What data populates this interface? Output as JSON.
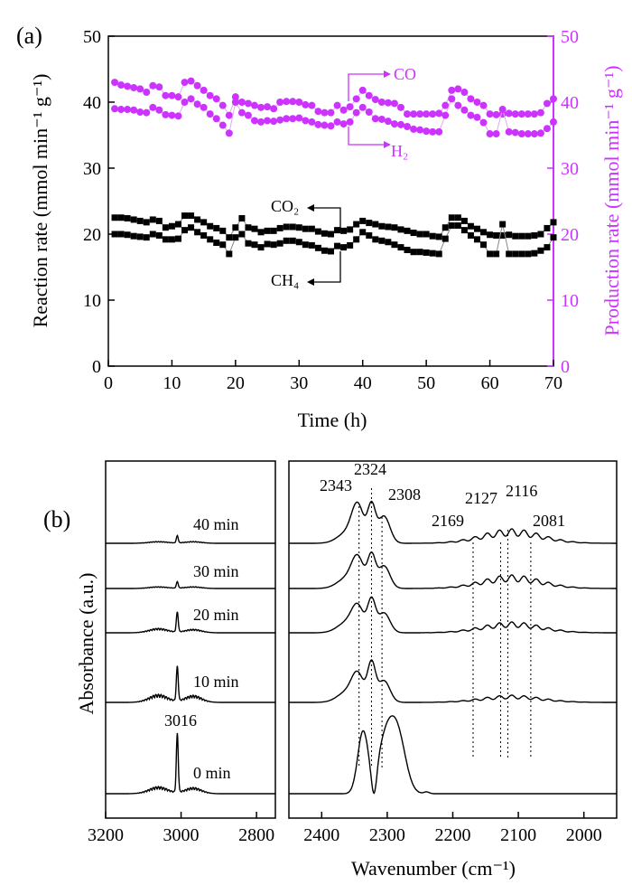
{
  "chart_data": [
    {
      "type": "scatter",
      "panel_label": "(a)",
      "xlabel": "Time (h)",
      "ylabel": "Reaction rate (mmol min⁻¹ g⁻¹)",
      "y2label": "Production rate (mmol min⁻¹ g⁻¹)",
      "xlim": [
        0,
        70
      ],
      "ylim": [
        0,
        50
      ],
      "y2lim": [
        0,
        50
      ],
      "xticks": [
        "0",
        "10",
        "20",
        "30",
        "40",
        "50",
        "60",
        "70"
      ],
      "yticks": [
        "0",
        "10",
        "20",
        "30",
        "40",
        "50"
      ],
      "y2ticks": [
        "0",
        "10",
        "20",
        "30",
        "40",
        "50"
      ],
      "colors": {
        "left_axis": "#000000",
        "right_axis": "#cc33ff",
        "ch4_co2": "#000000",
        "co_h2": "#cc33ff"
      },
      "annotations": [
        {
          "text": "CO",
          "x": 39,
          "y": 44.5
        },
        {
          "text": "H₂",
          "x": 39,
          "y": 33
        },
        {
          "text": "CO₂",
          "x": 30.5,
          "y": 24.2
        },
        {
          "text": "CH₄",
          "x": 30.5,
          "y": 13
        }
      ],
      "series": [
        {
          "name": "CO",
          "axis": "right",
          "marker": "circle",
          "x": [
            1,
            2,
            3,
            4,
            5,
            6,
            7,
            8,
            9,
            10,
            11,
            12,
            13,
            14,
            15,
            16,
            17,
            18,
            19,
            20,
            21,
            22,
            23,
            24,
            25,
            26,
            27,
            28,
            29,
            30,
            31,
            32,
            33,
            34,
            35,
            36,
            37,
            38,
            39,
            40,
            41,
            42,
            43,
            44,
            45,
            46,
            47,
            48,
            49,
            50,
            51,
            52,
            53,
            54,
            55,
            56,
            57,
            58,
            59,
            60,
            61,
            62,
            63,
            64,
            65,
            66,
            67,
            68,
            69,
            70
          ],
          "y": [
            43,
            42.6,
            42.4,
            42.2,
            42,
            41.5,
            42.5,
            42.3,
            41,
            41,
            40.8,
            43,
            43.2,
            42.5,
            41.8,
            41,
            40.5,
            39.5,
            38,
            40.8,
            40,
            39.8,
            39.5,
            39.2,
            39.3,
            39,
            40,
            40.1,
            40.1,
            40,
            39.6,
            39.5,
            38.6,
            38.4,
            38.4,
            39.5,
            38.8,
            39.3,
            40.5,
            41.8,
            41,
            40.4,
            40,
            39.9,
            39.8,
            39.2,
            38.2,
            38.2,
            38.2,
            38.2,
            38.2,
            38.3,
            39.5,
            41.8,
            42,
            41.5,
            40.5,
            40,
            39.5,
            38.2,
            38.1,
            38.2,
            38.3,
            38.2,
            38.2,
            38.2,
            38.2,
            38.4,
            39.8,
            40.5
          ]
        },
        {
          "name": "H₂",
          "axis": "right",
          "marker": "circle",
          "x": [
            1,
            2,
            3,
            4,
            5,
            6,
            7,
            8,
            9,
            10,
            11,
            12,
            13,
            14,
            15,
            16,
            17,
            18,
            19,
            20,
            21,
            22,
            23,
            24,
            25,
            26,
            27,
            28,
            29,
            30,
            31,
            32,
            33,
            34,
            35,
            36,
            37,
            38,
            39,
            40,
            41,
            42,
            43,
            44,
            45,
            46,
            47,
            48,
            49,
            50,
            51,
            52,
            53,
            54,
            55,
            56,
            57,
            58,
            59,
            60,
            61,
            62,
            63,
            64,
            65,
            66,
            67,
            68,
            69,
            70
          ],
          "y": [
            39,
            38.9,
            38.9,
            38.8,
            38.5,
            38.4,
            39.2,
            38.8,
            38.1,
            38,
            37.9,
            40,
            40.5,
            39.7,
            39.2,
            38.2,
            37.5,
            36.5,
            35.3,
            40,
            38.4,
            38,
            37.2,
            37,
            37.2,
            37.1,
            37.3,
            37.5,
            37.5,
            37.6,
            37.2,
            37,
            36.6,
            36.5,
            36.4,
            37,
            36.7,
            37,
            38.4,
            39.2,
            38.5,
            37.5,
            37.4,
            37.1,
            36.7,
            36.6,
            36.3,
            35.9,
            35.8,
            35.6,
            35.5,
            35.5,
            38,
            40.5,
            39.5,
            38.8,
            38,
            37.7,
            36.9,
            35.2,
            35.2,
            38.9,
            35.5,
            35.4,
            35.2,
            35.2,
            35.2,
            35.3,
            36,
            37
          ]
        },
        {
          "name": "CO₂",
          "axis": "left",
          "marker": "square",
          "x": [
            1,
            2,
            3,
            4,
            5,
            6,
            7,
            8,
            9,
            10,
            11,
            12,
            13,
            14,
            15,
            16,
            17,
            18,
            19,
            20,
            21,
            22,
            23,
            24,
            25,
            26,
            27,
            28,
            29,
            30,
            31,
            32,
            33,
            34,
            35,
            36,
            37,
            38,
            39,
            40,
            41,
            42,
            43,
            44,
            45,
            46,
            47,
            48,
            49,
            50,
            51,
            52,
            53,
            54,
            55,
            56,
            57,
            58,
            59,
            60,
            61,
            62,
            63,
            64,
            65,
            66,
            67,
            68,
            69,
            70
          ],
          "y": [
            22.5,
            22.5,
            22.4,
            22.2,
            22,
            21.8,
            22.2,
            22,
            21,
            21.2,
            21.5,
            22.8,
            22.8,
            22.2,
            21.8,
            21.2,
            20.9,
            20.5,
            19.5,
            21,
            22.4,
            21,
            20.8,
            20.3,
            20.5,
            20.5,
            20.9,
            21.1,
            21.1,
            21,
            20.8,
            20.8,
            20.4,
            20.1,
            20,
            20.6,
            20.5,
            20.7,
            21.5,
            22,
            21.7,
            21.5,
            21.2,
            21.1,
            21,
            20.7,
            20.5,
            20.2,
            20,
            20,
            19.7,
            19.6,
            21,
            22.5,
            22.5,
            22,
            21.2,
            20.8,
            20.3,
            19.9,
            19.8,
            19.8,
            19.9,
            19.7,
            19.7,
            19.7,
            19.8,
            20,
            20.9,
            21.8
          ]
        },
        {
          "name": "CH₄",
          "axis": "left",
          "marker": "square",
          "x": [
            1,
            2,
            3,
            4,
            5,
            6,
            7,
            8,
            9,
            10,
            11,
            12,
            13,
            14,
            15,
            16,
            17,
            18,
            19,
            20,
            21,
            22,
            23,
            24,
            25,
            26,
            27,
            28,
            29,
            30,
            31,
            32,
            33,
            34,
            35,
            36,
            37,
            38,
            39,
            40,
            41,
            42,
            43,
            44,
            45,
            46,
            47,
            48,
            49,
            50,
            51,
            52,
            53,
            54,
            55,
            56,
            57,
            58,
            59,
            60,
            61,
            62,
            63,
            64,
            65,
            66,
            67,
            68,
            69,
            70
          ],
          "y": [
            20,
            20,
            19.9,
            19.7,
            19.6,
            19.5,
            20,
            19.8,
            19.2,
            19.2,
            19.3,
            20.6,
            21,
            20.3,
            19.8,
            19.2,
            18.7,
            18.4,
            17,
            19.5,
            20,
            18.6,
            18.4,
            18,
            18.5,
            18.4,
            18.6,
            19,
            19,
            18.8,
            18.4,
            18.3,
            17.9,
            17.5,
            17.4,
            18.2,
            18,
            18.3,
            19.2,
            20.3,
            19.8,
            19.2,
            19,
            18.8,
            18.4,
            18,
            17.6,
            17.3,
            17.3,
            17.2,
            17.1,
            17,
            19.3,
            21.3,
            21.3,
            20.6,
            19.8,
            19.2,
            18.4,
            17,
            17,
            21.5,
            17,
            17,
            17,
            17,
            17.1,
            17.5,
            18,
            19.5
          ]
        }
      ]
    },
    {
      "type": "line",
      "panel_label": "(b)",
      "xlabel": "Wavenumber (cm⁻¹)",
      "ylabel": "Absorbance (a.u.)",
      "xticks_left": [
        "3200",
        "3000",
        "2800"
      ],
      "xticks_right": [
        "2400",
        "2300",
        "2200",
        "2100",
        "2000"
      ],
      "xlim_left": [
        3200,
        2750
      ],
      "xlim_right": [
        2450,
        1950
      ],
      "peak_labels": [
        "3016",
        "2343",
        "2324",
        "2308",
        "2169",
        "2127",
        "2116",
        "2081"
      ],
      "dotted_line_positions": [
        2343,
        2324,
        2308,
        2169,
        2127,
        2116,
        2081
      ],
      "series": [
        {
          "name": "0 min",
          "label": "0 min",
          "left_peaks": {
            "3016": 65,
            "p3050": 8,
            "p2960": 7
          },
          "right_peaks": {
            "2345": 68,
            "2300": 60,
            "2240": 2
          }
        },
        {
          "name": "10 min",
          "label": "10 min",
          "left_peaks": {
            "3016": 38,
            "p3050": 9,
            "p2960": 8
          },
          "right_peaks": {
            "2343": 27,
            "2324": 42,
            "2308": 24,
            "broad_2110": 8
          }
        },
        {
          "name": "20 min",
          "label": "20 min",
          "left_peaks": {
            "3016": 22,
            "p3050": 5,
            "p2960": 4
          },
          "right_peaks": {
            "2343": 25,
            "2324": 35,
            "2308": 22,
            "broad_2110": 12
          }
        },
        {
          "name": "30 min",
          "label": "30 min",
          "left_peaks": {
            "3016": 7,
            "p3050": 2,
            "p2960": 2
          },
          "right_peaks": {
            "2343": 30,
            "2324": 35,
            "2308": 25,
            "broad_2110": 15
          }
        },
        {
          "name": "40 min",
          "label": "40 min",
          "left_peaks": {
            "3016": 8,
            "p3050": 2,
            "p2960": 2
          },
          "right_peaks": {
            "2343": 38,
            "2324": 40,
            "2308": 30,
            "broad_2110": 16
          }
        }
      ]
    }
  ]
}
